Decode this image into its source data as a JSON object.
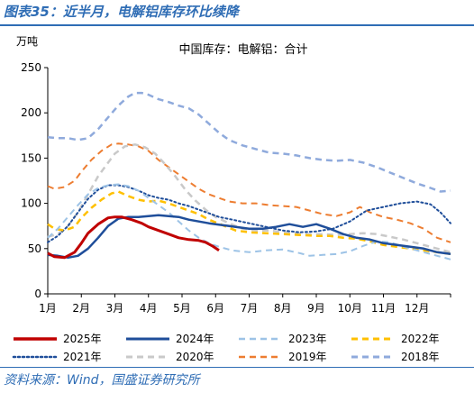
{
  "header": {
    "figure_title": "图表35：近半月，电解铝库存环比续降"
  },
  "footer": {
    "source": "资料来源：Wind，国盛证券研究所"
  },
  "colors": {
    "2025": "#c00000",
    "2024": "#1f4e9a",
    "2023": "#9dc3e6",
    "2022": "#ffc000",
    "2021": "#1f4e9a",
    "2020": "#c9c9c9",
    "2019": "#ed7d31",
    "2018": "#8faadc",
    "accent": "#2f6db5"
  },
  "chart_data": {
    "type": "line",
    "title": "中国库存：电解铝：合计",
    "ylabel": "万吨",
    "xlabel": "",
    "ylim": [
      0,
      250
    ],
    "yticks": [
      "0",
      "50",
      "100",
      "150",
      "200",
      "250"
    ],
    "xlim": [
      1,
      13
    ],
    "xticks": [
      "1月",
      "2月",
      "3月",
      "4月",
      "5月",
      "6月",
      "7月",
      "8月",
      "9月",
      "10月",
      "11月",
      "12月"
    ],
    "grid": false,
    "legend_position": "bottom",
    "series": [
      {
        "name": "2025年",
        "style": "solid",
        "width": 3,
        "color_key": "2025",
        "points": [
          [
            1.0,
            45
          ],
          [
            1.2,
            41
          ],
          [
            1.5,
            40
          ],
          [
            1.8,
            46
          ],
          [
            2.0,
            56
          ],
          [
            2.2,
            67
          ],
          [
            2.5,
            77
          ],
          [
            2.8,
            84
          ],
          [
            3.0,
            85
          ],
          [
            3.2,
            85
          ],
          [
            3.5,
            82
          ],
          [
            3.8,
            78
          ],
          [
            4.0,
            74
          ],
          [
            4.3,
            70
          ],
          [
            4.6,
            66
          ],
          [
            4.9,
            62
          ],
          [
            5.2,
            60
          ],
          [
            5.5,
            59
          ],
          [
            5.7,
            57
          ],
          [
            5.9,
            53
          ],
          [
            6.1,
            48
          ]
        ]
      },
      {
        "name": "2024年",
        "style": "solid",
        "width": 2.5,
        "color_key": "2024",
        "points": [
          [
            1.0,
            43
          ],
          [
            1.3,
            42
          ],
          [
            1.6,
            40
          ],
          [
            1.9,
            42
          ],
          [
            2.2,
            50
          ],
          [
            2.5,
            62
          ],
          [
            2.8,
            75
          ],
          [
            3.1,
            83
          ],
          [
            3.4,
            85
          ],
          [
            3.7,
            85
          ],
          [
            4.0,
            86
          ],
          [
            4.3,
            87
          ],
          [
            4.6,
            86
          ],
          [
            4.9,
            85
          ],
          [
            5.2,
            82
          ],
          [
            5.5,
            80
          ],
          [
            5.8,
            78
          ],
          [
            6.2,
            76
          ],
          [
            6.6,
            74
          ],
          [
            7.0,
            72
          ],
          [
            7.4,
            72
          ],
          [
            7.8,
            74
          ],
          [
            8.2,
            77
          ],
          [
            8.6,
            74
          ],
          [
            9.0,
            77
          ],
          [
            9.4,
            72
          ],
          [
            9.8,
            66
          ],
          [
            10.2,
            62
          ],
          [
            10.6,
            60
          ],
          [
            11.0,
            56
          ],
          [
            11.4,
            54
          ],
          [
            11.8,
            52
          ],
          [
            12.2,
            50
          ],
          [
            12.6,
            46
          ],
          [
            13.0,
            44
          ]
        ]
      },
      {
        "name": "2023年",
        "style": "dash",
        "width": 2,
        "color_key": "2023",
        "points": [
          [
            1.0,
            62
          ],
          [
            1.3,
            72
          ],
          [
            1.6,
            85
          ],
          [
            1.9,
            98
          ],
          [
            2.2,
            110
          ],
          [
            2.5,
            117
          ],
          [
            2.8,
            120
          ],
          [
            3.1,
            121
          ],
          [
            3.4,
            119
          ],
          [
            3.7,
            114
          ],
          [
            4.0,
            106
          ],
          [
            4.3,
            98
          ],
          [
            4.6,
            90
          ],
          [
            4.9,
            80
          ],
          [
            5.2,
            70
          ],
          [
            5.5,
            62
          ],
          [
            5.8,
            56
          ],
          [
            6.1,
            52
          ],
          [
            6.5,
            48
          ],
          [
            7.0,
            46
          ],
          [
            7.5,
            48
          ],
          [
            8.0,
            49
          ],
          [
            8.5,
            45
          ],
          [
            8.8,
            42
          ],
          [
            9.2,
            43
          ],
          [
            9.6,
            44
          ],
          [
            10.0,
            47
          ],
          [
            10.4,
            53
          ],
          [
            10.8,
            58
          ],
          [
            11.2,
            57
          ],
          [
            11.6,
            52
          ],
          [
            12.0,
            48
          ],
          [
            12.4,
            44
          ],
          [
            12.8,
            40
          ],
          [
            13.0,
            38
          ]
        ]
      },
      {
        "name": "2022年",
        "style": "dash",
        "width": 2.5,
        "color_key": "2022",
        "points": [
          [
            1.0,
            77
          ],
          [
            1.2,
            72
          ],
          [
            1.5,
            70
          ],
          [
            1.8,
            74
          ],
          [
            2.0,
            84
          ],
          [
            2.3,
            95
          ],
          [
            2.6,
            104
          ],
          [
            2.9,
            111
          ],
          [
            3.1,
            113
          ],
          [
            3.4,
            108
          ],
          [
            3.7,
            104
          ],
          [
            4.0,
            102
          ],
          [
            4.3,
            103
          ],
          [
            4.6,
            100
          ],
          [
            4.9,
            96
          ],
          [
            5.2,
            92
          ],
          [
            5.5,
            88
          ],
          [
            5.8,
            82
          ],
          [
            6.2,
            76
          ],
          [
            6.6,
            70
          ],
          [
            7.0,
            68
          ],
          [
            7.5,
            67
          ],
          [
            8.0,
            66
          ],
          [
            8.5,
            65
          ],
          [
            9.0,
            64
          ],
          [
            9.4,
            64
          ],
          [
            9.8,
            62
          ],
          [
            10.2,
            61
          ],
          [
            10.6,
            58
          ],
          [
            11.0,
            54
          ],
          [
            11.4,
            52
          ],
          [
            11.8,
            50
          ],
          [
            12.2,
            48
          ],
          [
            12.6,
            46
          ],
          [
            13.0,
            44
          ]
        ]
      },
      {
        "name": "2021年",
        "style": "dot",
        "width": 2,
        "color_key": "2021",
        "points": [
          [
            1.0,
            57
          ],
          [
            1.3,
            64
          ],
          [
            1.6,
            75
          ],
          [
            1.9,
            90
          ],
          [
            2.2,
            105
          ],
          [
            2.5,
            115
          ],
          [
            2.8,
            120
          ],
          [
            3.1,
            120
          ],
          [
            3.4,
            118
          ],
          [
            3.7,
            114
          ],
          [
            4.0,
            109
          ],
          [
            4.3,
            106
          ],
          [
            4.6,
            104
          ],
          [
            4.9,
            100
          ],
          [
            5.2,
            97
          ],
          [
            5.5,
            93
          ],
          [
            5.8,
            89
          ],
          [
            6.1,
            85
          ],
          [
            6.5,
            82
          ],
          [
            7.0,
            78
          ],
          [
            7.5,
            74
          ],
          [
            8.0,
            70
          ],
          [
            8.5,
            68
          ],
          [
            9.0,
            69
          ],
          [
            9.5,
            72
          ],
          [
            10.0,
            80
          ],
          [
            10.5,
            92
          ],
          [
            11.0,
            96
          ],
          [
            11.5,
            100
          ],
          [
            12.0,
            102
          ],
          [
            12.4,
            99
          ],
          [
            12.7,
            90
          ],
          [
            13.0,
            78
          ]
        ]
      },
      {
        "name": "2020年",
        "style": "dash",
        "width": 2.5,
        "color_key": "2020",
        "points": [
          [
            1.0,
            63
          ],
          [
            1.3,
            66
          ],
          [
            1.6,
            75
          ],
          [
            1.9,
            90
          ],
          [
            2.2,
            110
          ],
          [
            2.5,
            130
          ],
          [
            2.8,
            145
          ],
          [
            3.0,
            155
          ],
          [
            3.3,
            163
          ],
          [
            3.6,
            165
          ],
          [
            3.9,
            162
          ],
          [
            4.2,
            155
          ],
          [
            4.5,
            143
          ],
          [
            4.8,
            130
          ],
          [
            5.1,
            115
          ],
          [
            5.4,
            103
          ],
          [
            5.7,
            93
          ],
          [
            6.0,
            85
          ],
          [
            6.4,
            78
          ],
          [
            6.8,
            72
          ],
          [
            7.2,
            70
          ],
          [
            7.6,
            70
          ],
          [
            8.0,
            68
          ],
          [
            8.4,
            67
          ],
          [
            8.8,
            66
          ],
          [
            9.2,
            66
          ],
          [
            9.6,
            65
          ],
          [
            10.0,
            66
          ],
          [
            10.4,
            67
          ],
          [
            10.8,
            66
          ],
          [
            11.2,
            63
          ],
          [
            11.6,
            60
          ],
          [
            12.0,
            56
          ],
          [
            12.4,
            52
          ],
          [
            12.8,
            48
          ],
          [
            13.0,
            46
          ]
        ]
      },
      {
        "name": "2019年",
        "style": "dash",
        "width": 2,
        "color_key": "2019",
        "points": [
          [
            1.0,
            119
          ],
          [
            1.2,
            116
          ],
          [
            1.5,
            118
          ],
          [
            1.8,
            125
          ],
          [
            2.0,
            135
          ],
          [
            2.3,
            148
          ],
          [
            2.6,
            158
          ],
          [
            2.9,
            165
          ],
          [
            3.1,
            166
          ],
          [
            3.4,
            165
          ],
          [
            3.7,
            163
          ],
          [
            4.0,
            158
          ],
          [
            4.3,
            148
          ],
          [
            4.6,
            140
          ],
          [
            4.9,
            132
          ],
          [
            5.2,
            124
          ],
          [
            5.5,
            116
          ],
          [
            5.8,
            110
          ],
          [
            6.1,
            106
          ],
          [
            6.4,
            102
          ],
          [
            6.8,
            100
          ],
          [
            7.2,
            100
          ],
          [
            7.6,
            98
          ],
          [
            8.0,
            97
          ],
          [
            8.4,
            96
          ],
          [
            8.8,
            92
          ],
          [
            9.2,
            88
          ],
          [
            9.6,
            86
          ],
          [
            10.0,
            90
          ],
          [
            10.3,
            96
          ],
          [
            10.6,
            90
          ],
          [
            11.0,
            85
          ],
          [
            11.4,
            82
          ],
          [
            11.8,
            78
          ],
          [
            12.2,
            72
          ],
          [
            12.6,
            62
          ],
          [
            13.0,
            57
          ]
        ]
      },
      {
        "name": "2018年",
        "style": "dash",
        "width": 2.5,
        "color_key": "2018",
        "points": [
          [
            1.0,
            173
          ],
          [
            1.3,
            172
          ],
          [
            1.6,
            172
          ],
          [
            1.9,
            170
          ],
          [
            2.2,
            172
          ],
          [
            2.5,
            182
          ],
          [
            2.8,
            195
          ],
          [
            3.1,
            208
          ],
          [
            3.4,
            218
          ],
          [
            3.6,
            222
          ],
          [
            3.8,
            222
          ],
          [
            4.0,
            220
          ],
          [
            4.3,
            215
          ],
          [
            4.6,
            212
          ],
          [
            4.9,
            208
          ],
          [
            5.2,
            205
          ],
          [
            5.5,
            198
          ],
          [
            5.8,
            188
          ],
          [
            6.1,
            178
          ],
          [
            6.4,
            170
          ],
          [
            6.8,
            164
          ],
          [
            7.2,
            160
          ],
          [
            7.6,
            156
          ],
          [
            8.0,
            155
          ],
          [
            8.4,
            153
          ],
          [
            8.8,
            150
          ],
          [
            9.2,
            148
          ],
          [
            9.6,
            147
          ],
          [
            10.0,
            148
          ],
          [
            10.4,
            145
          ],
          [
            10.8,
            140
          ],
          [
            11.2,
            134
          ],
          [
            11.6,
            128
          ],
          [
            12.0,
            122
          ],
          [
            12.4,
            117
          ],
          [
            12.7,
            113
          ],
          [
            13.0,
            114
          ]
        ]
      }
    ]
  }
}
